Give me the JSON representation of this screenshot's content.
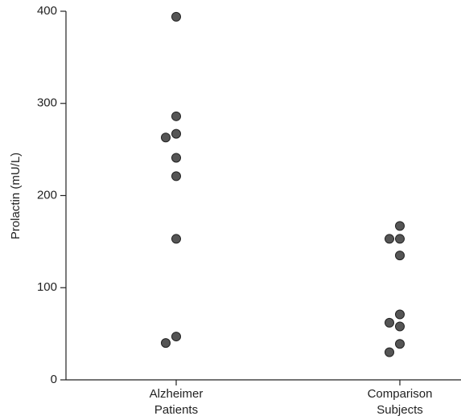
{
  "chart_data": {
    "type": "strip",
    "y_label": "Prolactin (mU/L)",
    "categories": [
      "Alzheimer Patients",
      "Comparison Subjects"
    ],
    "values": [
      [
        394,
        286,
        267,
        263,
        241,
        221,
        153,
        47,
        40
      ],
      [
        167,
        153,
        153,
        135,
        71,
        62,
        58,
        39,
        30
      ]
    ],
    "color": "#555555",
    "ylim": [
      0,
      400
    ],
    "yticks": [
      0,
      100,
      200,
      300,
      400
    ]
  }
}
